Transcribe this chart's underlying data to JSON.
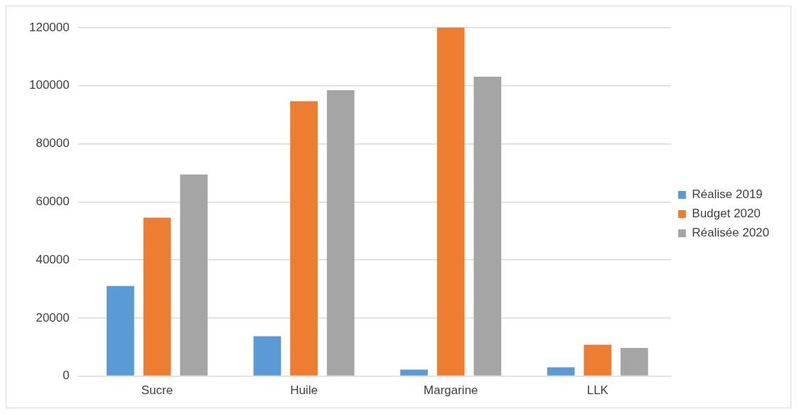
{
  "chart_data": {
    "type": "bar",
    "categories": [
      "Sucre",
      "Huile",
      "Margarine",
      "LLK"
    ],
    "series": [
      {
        "name": "Réalise 2019",
        "color": "#5b9bd5",
        "values": [
          31000,
          13700,
          2200,
          3000
        ]
      },
      {
        "name": "Budget 2020",
        "color": "#ed7d31",
        "values": [
          54600,
          94700,
          120000,
          10800
        ]
      },
      {
        "name": "Réalisée 2020",
        "color": "#a5a5a5",
        "values": [
          69400,
          98500,
          103100,
          9700
        ]
      }
    ],
    "ylim": [
      0,
      120000
    ],
    "yticks": [
      0,
      20000,
      40000,
      60000,
      80000,
      100000,
      120000
    ],
    "grid": "y",
    "legend": "right"
  }
}
